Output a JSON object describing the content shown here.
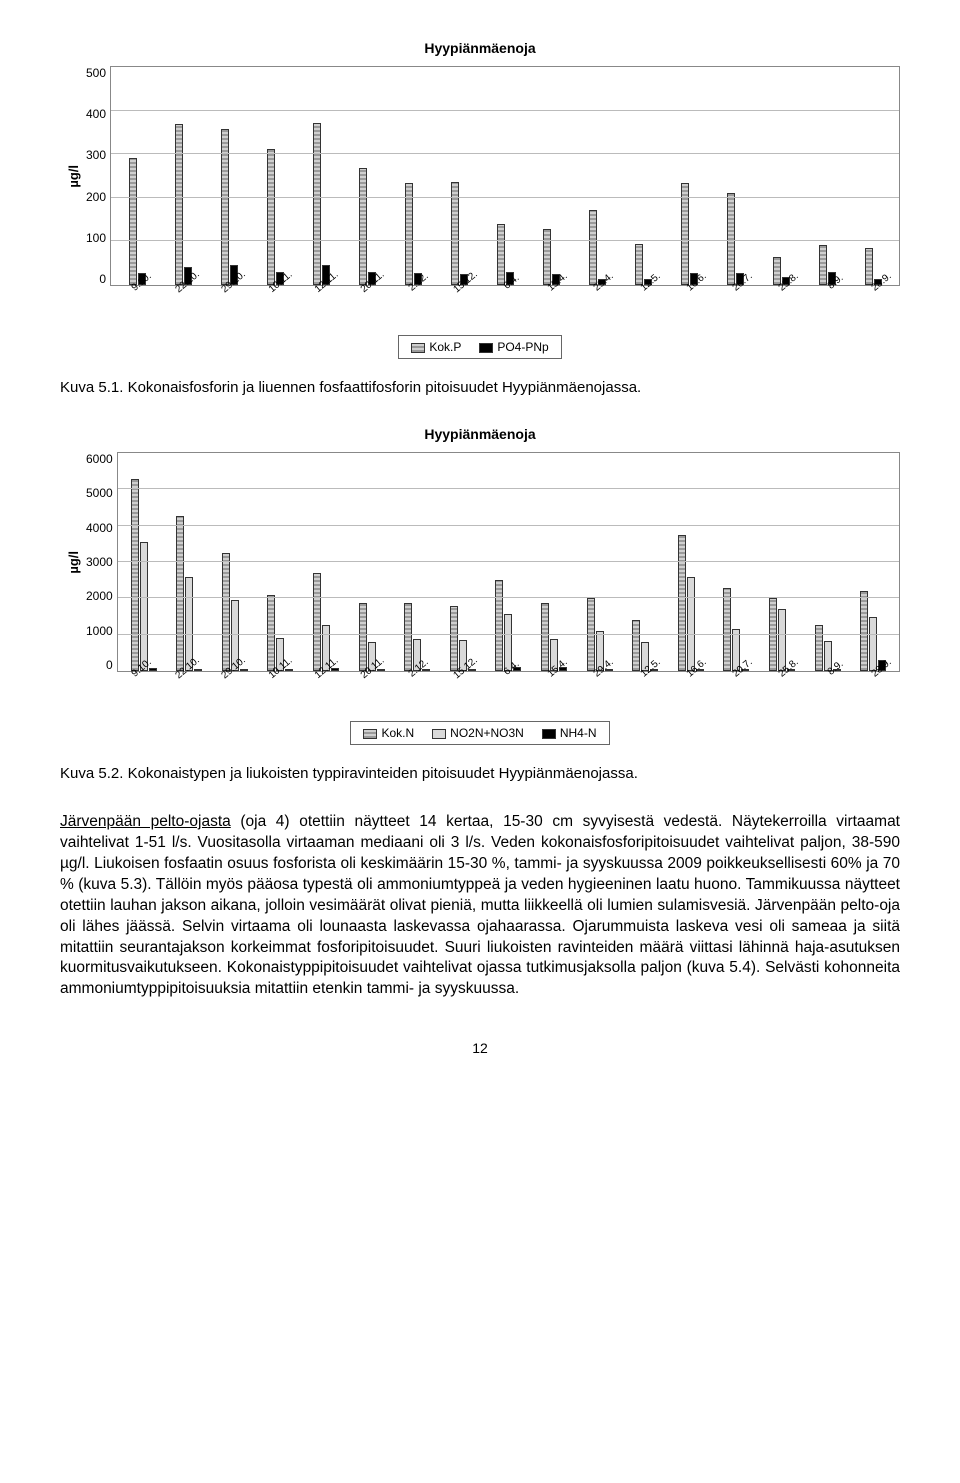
{
  "chart1": {
    "title": "Hyypiänmäenoja",
    "ylabel": "µg/l",
    "ylim": [
      0,
      500
    ],
    "yticks": [
      500,
      400,
      300,
      200,
      100,
      0
    ],
    "categories": [
      "9.10.",
      "22.10.",
      "29.10.",
      "10.11.",
      "12.11.",
      "20.11.",
      "2.12.",
      "15.12.",
      "6.4.",
      "15.4.",
      "29.4.",
      "12.5.",
      "16.6.",
      "20.7.",
      "25.8.",
      "8.9.",
      "28.9."
    ],
    "series": [
      {
        "name": "Kok.P",
        "class": "kokp",
        "values": [
          292,
          370,
          358,
          313,
          372,
          268,
          233,
          236,
          140,
          128,
          172,
          93,
          233,
          210,
          65,
          92,
          85
        ]
      },
      {
        "name": "PO4-PNp",
        "class": "po4",
        "values": [
          28,
          42,
          45,
          30,
          45,
          30,
          28,
          26,
          30,
          26,
          14,
          14,
          28,
          28,
          18,
          30,
          14
        ]
      }
    ],
    "legend": [
      "Kok.P",
      "PO4-PNp"
    ],
    "legend_classes": [
      "kokp",
      "po4"
    ]
  },
  "caption1_label": "Kuva 5.1.",
  "caption1_text": "Kokonaisfosforin ja liuennen fosfaattifosforin pitoisuudet Hyypiänmäenojassa.",
  "chart2": {
    "title": "Hyypiänmäenoja",
    "ylabel": "µg/l",
    "ylim": [
      0,
      6000
    ],
    "yticks": [
      6000,
      5000,
      4000,
      3000,
      2000,
      1000,
      0
    ],
    "categories": [
      "9.10.",
      "22.10.",
      "29.10.",
      "10.11.",
      "12.11.",
      "20.11.",
      "2.12.",
      "15.12.",
      "6.4.",
      "15.4.",
      "29.4.",
      "12.5.",
      "16.6.",
      "20.7.",
      "25.8.",
      "8.9.",
      "28.9."
    ],
    "series": [
      {
        "name": "Kok.N",
        "class": "kokn",
        "values": [
          5290,
          4280,
          3260,
          2100,
          2700,
          1880,
          1870,
          1780,
          2500,
          1880,
          2000,
          1400,
          3750,
          2280,
          2000,
          1280,
          2200
        ]
      },
      {
        "name": "NO2N+NO3N",
        "class": "no2",
        "values": [
          3550,
          2580,
          1950,
          900,
          1280,
          790,
          870,
          840,
          1580,
          880,
          1100,
          810,
          2580,
          1150,
          1700,
          830,
          1500
        ]
      },
      {
        "name": "NH4-N",
        "class": "nh4",
        "values": [
          70,
          60,
          50,
          40,
          70,
          50,
          50,
          50,
          120,
          120,
          60,
          50,
          60,
          50,
          60,
          50,
          300
        ]
      }
    ],
    "legend": [
      "Kok.N",
      "NO2N+NO3N",
      "NH4-N"
    ],
    "legend_classes": [
      "kokn",
      "no2",
      "nh4"
    ]
  },
  "caption2_label": "Kuva 5.2.",
  "caption2_text": "Kokonaistypen ja liukoisten typpiravinteiden pitoisuudet Hyypiänmäenojassa.",
  "body": {
    "u1": "Järvenpään pelto-ojasta",
    "p1": " (oja 4) otettiin näytteet 14 kertaa, 15-30 cm syvyisestä vedestä. Näytekerroilla virtaamat vaihtelivat 1-51 l/s. Vuositasolla virtaaman mediaani oli 3 l/s. Veden kokonaisfosforipitoisuudet vaihtelivat paljon, 38-590 µg/l. Liukoisen fosfaatin osuus fosforista oli keskimäärin 15-30 %, tammi- ja syyskuussa 2009 poikkeuksellisesti 60% ja 70 % (kuva 5.3). Tällöin myös pääosa typestä oli ammoniumtyppeä ja veden hygieeninen laatu huono. Tammikuussa näytteet otettiin lauhan jakson aikana, jolloin vesimäärät olivat pieniä, mutta liikkeellä oli lumien sulamisvesiä. Järvenpään pelto-oja oli lähes jäässä. Selvin virtaama oli lounaasta laskevassa ojahaarassa. Ojarummuista laskeva vesi oli sameaa ja siitä mitattiin seurantajakson korkeimmat fosforipitoisuudet. Suuri liukoisten ravinteiden määrä viittasi lähinnä haja-asutuksen kuormitusvaikutukseen. Kokonaistyppipitoisuudet vaihtelivat ojassa tutkimusjaksolla paljon (kuva 5.4). Selvästi kohonneita ammoniumtyppipitoisuuksia mitattiin etenkin tammi- ja syyskuussa."
  },
  "page_number": "12"
}
